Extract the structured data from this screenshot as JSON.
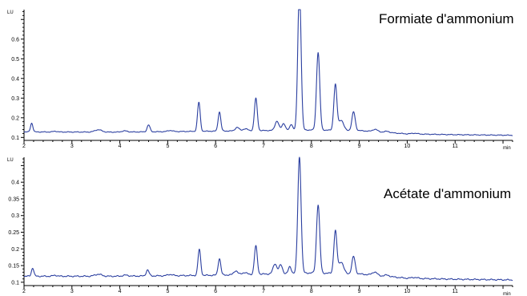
{
  "chart_data": [
    {
      "type": "line",
      "title": "Formiate d'ammonium",
      "y_unit": "LU",
      "x_unit": "min",
      "xlim": [
        2,
        12.2
      ],
      "ylim": [
        0.085,
        0.75
      ],
      "x_ticks": [
        2,
        3,
        4,
        5,
        6,
        7,
        8,
        9,
        10,
        11
      ],
      "y_ticks": [
        0.1,
        0.2,
        0.3,
        0.4,
        0.5,
        0.6
      ],
      "color": "#2b3fa0",
      "baseline": [
        [
          2.0,
          0.128
        ],
        [
          4.0,
          0.127
        ],
        [
          6.0,
          0.132
        ],
        [
          8.0,
          0.138
        ],
        [
          9.0,
          0.135
        ],
        [
          10.0,
          0.118
        ],
        [
          11.0,
          0.114
        ],
        [
          12.2,
          0.111
        ]
      ],
      "peaks": [
        {
          "t": 2.16,
          "h": 0.045,
          "w": 0.025
        },
        {
          "t": 2.65,
          "h": 0.004,
          "w": 0.04
        },
        {
          "t": 3.55,
          "h": 0.012,
          "w": 0.07
        },
        {
          "t": 4.1,
          "h": 0.006,
          "w": 0.06
        },
        {
          "t": 4.6,
          "h": 0.035,
          "w": 0.03
        },
        {
          "t": 5.05,
          "h": 0.006,
          "w": 0.05
        },
        {
          "t": 5.65,
          "h": 0.148,
          "w": 0.028
        },
        {
          "t": 6.08,
          "h": 0.098,
          "w": 0.028
        },
        {
          "t": 6.45,
          "h": 0.018,
          "w": 0.04
        },
        {
          "t": 6.62,
          "h": 0.01,
          "w": 0.05
        },
        {
          "t": 6.84,
          "h": 0.165,
          "w": 0.03
        },
        {
          "t": 7.28,
          "h": 0.047,
          "w": 0.04
        },
        {
          "t": 7.42,
          "h": 0.035,
          "w": 0.035
        },
        {
          "t": 7.58,
          "h": 0.03,
          "w": 0.03
        },
        {
          "t": 7.75,
          "h": 0.73,
          "w": 0.034
        },
        {
          "t": 8.14,
          "h": 0.395,
          "w": 0.034
        },
        {
          "t": 8.5,
          "h": 0.232,
          "w": 0.032
        },
        {
          "t": 8.62,
          "h": 0.052,
          "w": 0.05
        },
        {
          "t": 8.88,
          "h": 0.095,
          "w": 0.034
        },
        {
          "t": 9.33,
          "h": 0.012,
          "w": 0.05
        },
        {
          "t": 9.58,
          "h": 0.006,
          "w": 0.05
        },
        {
          "t": 10.15,
          "h": 0.004,
          "w": 0.06
        }
      ]
    },
    {
      "type": "line",
      "title": "Acétate d'ammonium",
      "y_unit": "LU",
      "x_unit": "min",
      "xlim": [
        2,
        12.2
      ],
      "ylim": [
        0.09,
        0.475
      ],
      "x_ticks": [
        2,
        3,
        4,
        5,
        6,
        7,
        8,
        9,
        10,
        11
      ],
      "y_ticks": [
        0.1,
        0.15,
        0.2,
        0.25,
        0.3,
        0.35,
        0.4
      ],
      "y_tick_labels": [
        "0.1",
        "0.15",
        "0.2",
        "0.25",
        "0.3",
        "0.35",
        "0.4"
      ],
      "color": "#2b3fa0",
      "baseline": [
        [
          2.0,
          0.118
        ],
        [
          4.0,
          0.118
        ],
        [
          6.0,
          0.121
        ],
        [
          8.0,
          0.128
        ],
        [
          9.0,
          0.125
        ],
        [
          10.0,
          0.112
        ],
        [
          11.0,
          0.109
        ],
        [
          12.2,
          0.107
        ]
      ],
      "peaks": [
        {
          "t": 2.18,
          "h": 0.025,
          "w": 0.025
        },
        {
          "t": 2.65,
          "h": 0.003,
          "w": 0.04
        },
        {
          "t": 3.55,
          "h": 0.006,
          "w": 0.07
        },
        {
          "t": 4.12,
          "h": 0.003,
          "w": 0.06
        },
        {
          "t": 4.58,
          "h": 0.018,
          "w": 0.03
        },
        {
          "t": 5.05,
          "h": 0.004,
          "w": 0.05
        },
        {
          "t": 5.66,
          "h": 0.078,
          "w": 0.028
        },
        {
          "t": 6.08,
          "h": 0.05,
          "w": 0.028
        },
        {
          "t": 6.42,
          "h": 0.012,
          "w": 0.04
        },
        {
          "t": 6.6,
          "h": 0.006,
          "w": 0.05
        },
        {
          "t": 6.84,
          "h": 0.085,
          "w": 0.03
        },
        {
          "t": 7.24,
          "h": 0.03,
          "w": 0.04
        },
        {
          "t": 7.36,
          "h": 0.026,
          "w": 0.035
        },
        {
          "t": 7.55,
          "h": 0.02,
          "w": 0.03
        },
        {
          "t": 7.75,
          "h": 0.35,
          "w": 0.034
        },
        {
          "t": 8.14,
          "h": 0.205,
          "w": 0.034
        },
        {
          "t": 8.5,
          "h": 0.127,
          "w": 0.032
        },
        {
          "t": 8.62,
          "h": 0.035,
          "w": 0.05
        },
        {
          "t": 8.88,
          "h": 0.052,
          "w": 0.034
        },
        {
          "t": 9.32,
          "h": 0.01,
          "w": 0.05
        },
        {
          "t": 9.58,
          "h": 0.004,
          "w": 0.05
        },
        {
          "t": 10.15,
          "h": 0.003,
          "w": 0.06
        }
      ]
    }
  ]
}
